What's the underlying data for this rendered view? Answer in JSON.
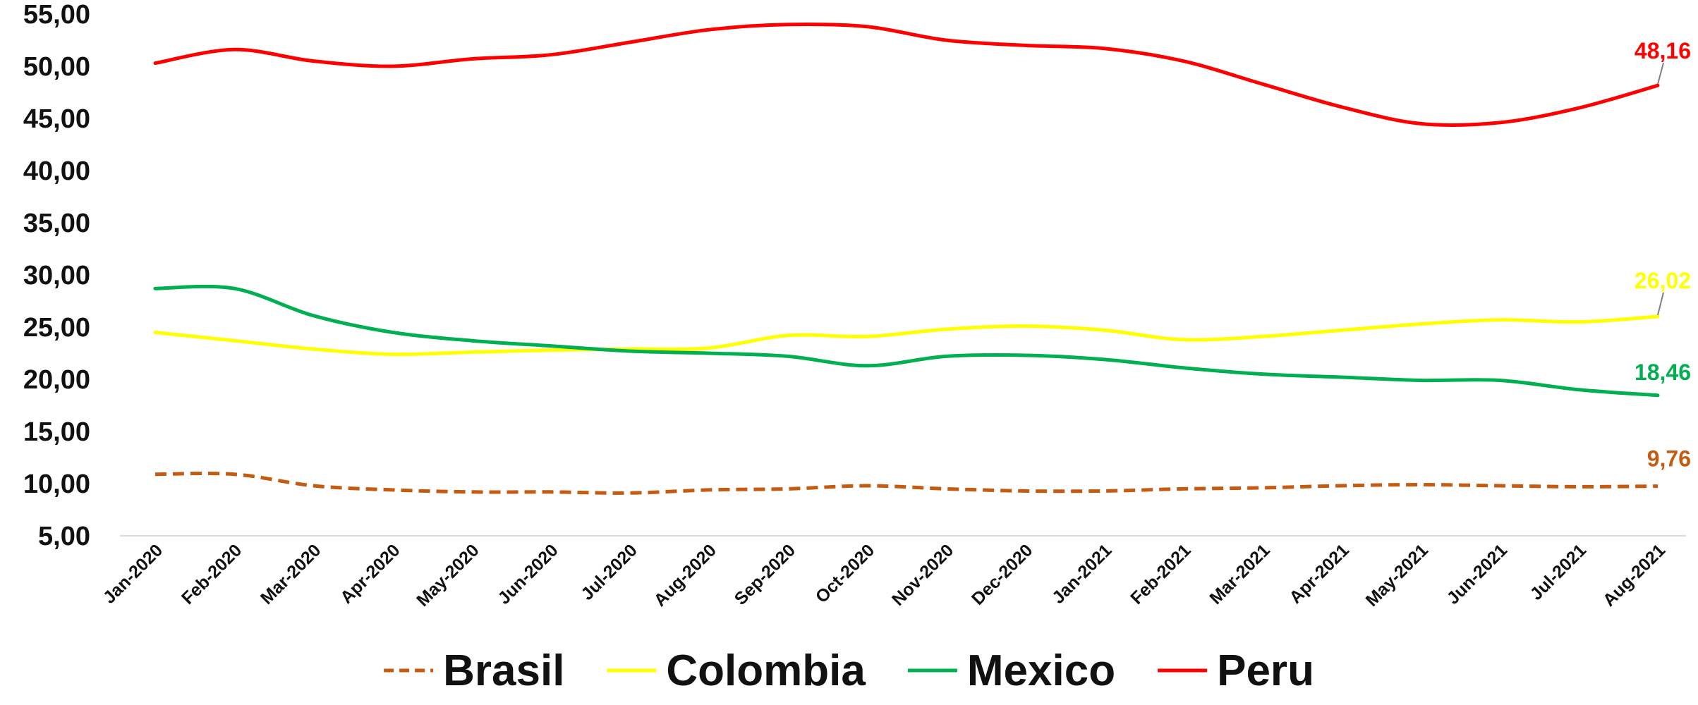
{
  "chart_data": {
    "type": "line",
    "title": "",
    "xlabel": "",
    "ylabel": "",
    "ylim": [
      5,
      55
    ],
    "ytick_labels": [
      "5,00",
      "10,00",
      "15,00",
      "20,00",
      "25,00",
      "30,00",
      "35,00",
      "40,00",
      "45,00",
      "50,00",
      "55,00"
    ],
    "categories": [
      "Jan-2020",
      "Feb-2020",
      "Mar-2020",
      "Apr-2020",
      "May-2020",
      "Jun-2020",
      "Jul-2020",
      "Aug-2020",
      "Sep-2020",
      "Oct-2020",
      "Nov-2020",
      "Dec-2020",
      "Jan-2021",
      "Feb-2021",
      "Mar-2021",
      "Apr-2021",
      "May-2021",
      "Jun-2021",
      "Jul-2021",
      "Aug-2021"
    ],
    "grid": false,
    "legend_position": "bottom",
    "series": [
      {
        "name": "Brasil",
        "color": "#c55a11",
        "dash": "dashed",
        "values": [
          10.9,
          10.9,
          9.8,
          9.4,
          9.2,
          9.2,
          9.1,
          9.4,
          9.5,
          9.8,
          9.5,
          9.3,
          9.3,
          9.5,
          9.6,
          9.8,
          9.9,
          9.8,
          9.7,
          9.76
        ],
        "end_label": "9,76"
      },
      {
        "name": "Colombia",
        "color": "#ffff00",
        "dash": "solid",
        "values": [
          24.5,
          23.7,
          22.9,
          22.4,
          22.6,
          22.8,
          22.9,
          23.0,
          24.2,
          24.1,
          24.8,
          25.1,
          24.7,
          23.8,
          24.1,
          24.7,
          25.3,
          25.7,
          25.5,
          26.02
        ],
        "end_label": "26,02"
      },
      {
        "name": "Mexico",
        "color": "#00b050",
        "dash": "solid",
        "values": [
          28.7,
          28.7,
          26.1,
          24.5,
          23.7,
          23.2,
          22.7,
          22.5,
          22.2,
          21.3,
          22.2,
          22.3,
          21.9,
          21.1,
          20.5,
          20.2,
          19.9,
          19.9,
          19.0,
          18.46
        ],
        "end_label": "18,46"
      },
      {
        "name": "Peru",
        "color": "#ff0000",
        "dash": "solid",
        "values": [
          50.3,
          51.6,
          50.5,
          50.0,
          50.7,
          51.1,
          52.3,
          53.5,
          54.0,
          53.8,
          52.5,
          52.0,
          51.7,
          50.5,
          48.3,
          46.1,
          44.5,
          44.6,
          46.0,
          48.16
        ],
        "end_label": "48,16"
      }
    ]
  }
}
